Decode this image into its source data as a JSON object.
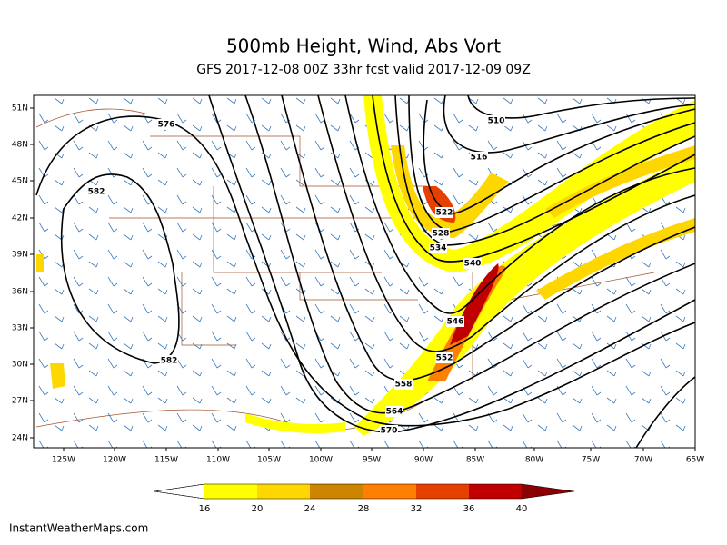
{
  "header": {
    "title": "500mb Height, Wind, Abs Vort",
    "subtitle": "GFS 2017-12-08 00Z 33hr fcst valid 2017-12-09 09Z"
  },
  "map": {
    "lat_labels": [
      "51N",
      "48N",
      "45N",
      "42N",
      "39N",
      "36N",
      "33N",
      "30N",
      "27N",
      "24N"
    ],
    "lon_labels": [
      "125W",
      "120W",
      "115W",
      "110W",
      "105W",
      "100W",
      "95W",
      "90W",
      "85W",
      "80W",
      "75W",
      "70W",
      "65W"
    ],
    "contour_labels": [
      "576",
      "582",
      "582",
      "510",
      "516",
      "522",
      "528",
      "534",
      "540",
      "546",
      "552",
      "558",
      "564",
      "570"
    ]
  },
  "colorbar": {
    "labels": [
      16,
      20,
      24,
      28,
      32,
      36,
      40
    ]
  },
  "footer": {
    "credit": "InstantWeatherMaps.com"
  }
}
